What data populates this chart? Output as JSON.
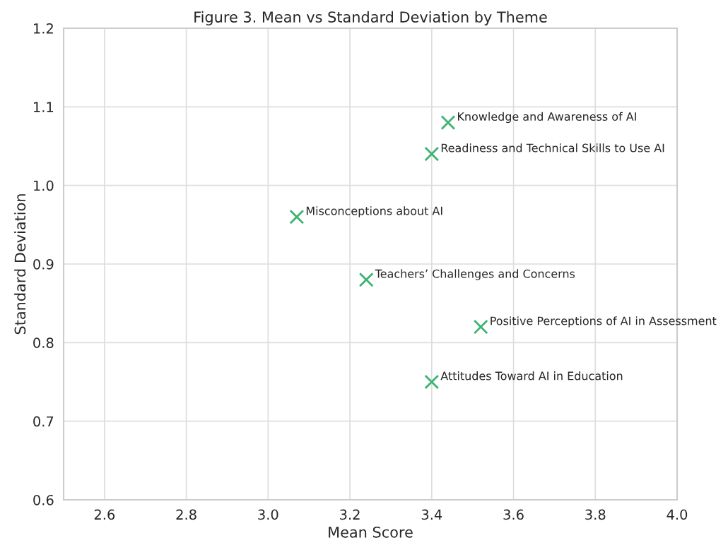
{
  "chart_data": {
    "type": "scatter",
    "title": "Figure 3. Mean vs Standard Deviation by Theme",
    "xlabel": "Mean Score",
    "ylabel": "Standard Deviation",
    "x": [
      3.44,
      3.4,
      3.07,
      3.24,
      3.52,
      3.4
    ],
    "values": [
      1.08,
      1.04,
      0.96,
      0.88,
      0.82,
      0.75
    ],
    "color": "#3cb371",
    "marker": "cross",
    "grid": true,
    "xlim": [
      2.5,
      4.0
    ],
    "xticks": [
      2.6,
      2.8,
      {
        "value": 3,
        "label": "3.0"
      },
      3.2,
      3.4,
      3.6,
      3.8,
      {
        "value": 4,
        "label": "4.0"
      }
    ],
    "ylim": [
      0.6,
      1.2
    ],
    "yticks": [
      0.6,
      0.7,
      0.8,
      0.9,
      {
        "value": 1,
        "label": "1.0"
      },
      1.1,
      1.2
    ],
    "annotations": [
      {
        "text": "Knowledge and Awareness of AI",
        "x": 3.44,
        "y": 1.08
      },
      {
        "text": "Readiness and Technical Skills to Use AI",
        "x": 3.4,
        "y": 1.04
      },
      {
        "text": "Misconceptions about AI",
        "x": 3.07,
        "y": 0.96
      },
      {
        "text": "Teachers’ Challenges and Concerns",
        "x": 3.24,
        "y": 0.88
      },
      {
        "text": "Positive Perceptions of AI in Assessment",
        "x": 3.52,
        "y": 0.82
      },
      {
        "text": "Attitudes Toward AI in Education",
        "x": 3.4,
        "y": 0.75
      }
    ]
  }
}
